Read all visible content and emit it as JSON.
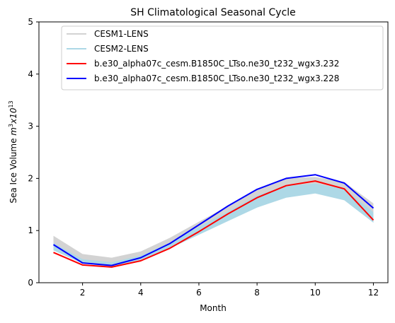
{
  "chart_data": {
    "type": "line",
    "title": "SH Climatological Seasonal Cycle",
    "xlabel": "Month",
    "ylabel_main": "Sea Ice Volume ",
    "ylabel_math_m": "m",
    "ylabel_math_m_sup": "3",
    "ylabel_math_x": "x10",
    "ylabel_math_x_sup": "13",
    "xlim": [
      0.5,
      12.5
    ],
    "ylim": [
      0,
      5
    ],
    "xticks": [
      2,
      4,
      6,
      8,
      10,
      12
    ],
    "yticks": [
      0,
      1,
      2,
      3,
      4,
      5
    ],
    "grid": false,
    "legend_position": "top-right",
    "x": [
      1,
      2,
      3,
      4,
      5,
      6,
      7,
      8,
      9,
      10,
      11,
      12
    ],
    "bands": [
      {
        "name": "CESM1-LENS",
        "color": "#d3d3d3",
        "lower": [
          0.66,
          0.4,
          0.35,
          0.48,
          0.72,
          1.0,
          1.3,
          1.6,
          1.8,
          1.85,
          1.78,
          1.25
        ],
        "upper": [
          0.9,
          0.55,
          0.48,
          0.6,
          0.86,
          1.17,
          1.47,
          1.78,
          2.0,
          2.03,
          1.93,
          1.52
        ]
      },
      {
        "name": "CESM2-LENS",
        "color": "#add8e6",
        "lower": [
          0.62,
          0.37,
          0.3,
          0.43,
          0.66,
          0.92,
          1.18,
          1.44,
          1.63,
          1.71,
          1.58,
          1.15
        ],
        "upper": [
          0.76,
          0.45,
          0.39,
          0.52,
          0.77,
          1.07,
          1.36,
          1.67,
          1.86,
          1.9,
          1.8,
          1.35
        ]
      }
    ],
    "series": [
      {
        "name": "b.e30_alpha07c_cesm.B1850C_LTso.ne30_t232_wgx3.232",
        "color": "#ff0000",
        "values": [
          0.58,
          0.34,
          0.3,
          0.42,
          0.66,
          0.98,
          1.32,
          1.63,
          1.86,
          1.95,
          1.8,
          1.2
        ]
      },
      {
        "name": "b.e30_alpha07c_cesm.B1850C_LTso.ne30_t232_wgx3.228",
        "color": "#0000ff",
        "values": [
          0.73,
          0.38,
          0.33,
          0.48,
          0.75,
          1.11,
          1.47,
          1.79,
          2.0,
          2.07,
          1.91,
          1.43
        ]
      }
    ]
  }
}
